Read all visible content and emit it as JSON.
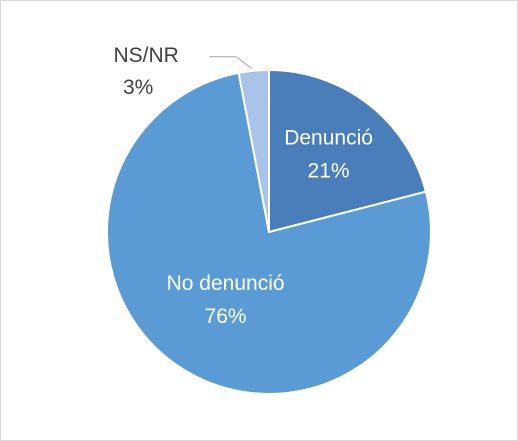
{
  "chart_data": {
    "type": "pie",
    "categories": [
      "Denunció",
      "No denunció",
      "NS/NR"
    ],
    "values": [
      21,
      76,
      3
    ],
    "value_labels": [
      "21%",
      "76%",
      "3%"
    ],
    "colors": [
      "#4a7ebb",
      "#5b9bd5",
      "#a9c4e8"
    ]
  }
}
